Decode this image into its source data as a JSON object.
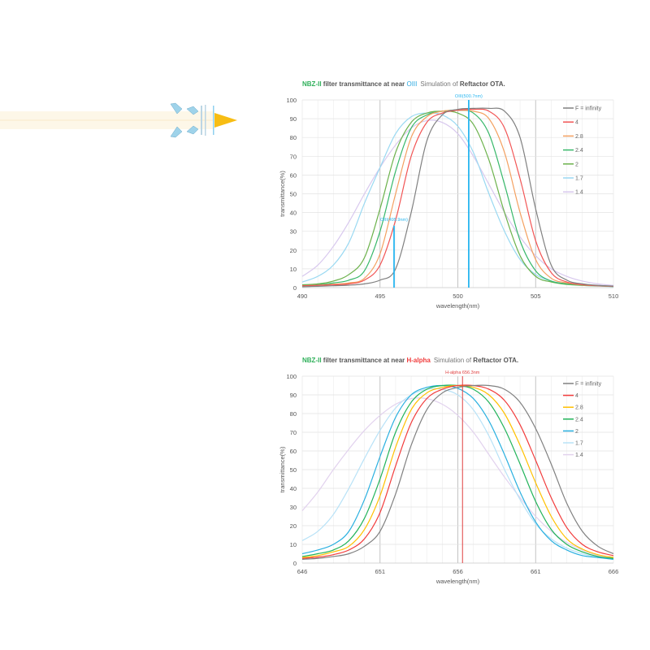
{
  "chart_data": [
    {
      "type": "line",
      "title_parts": {
        "brand": "NBZ-II",
        "text1": " filter transmittance  at near ",
        "line": "OIII",
        "sim": "Simulation of ",
        "ota": "Reftactor OTA."
      },
      "title_colors": {
        "brand": "#2fb05a",
        "line": "#29a8e0"
      },
      "xlabel": "wavelength(nm)",
      "ylabel": "transmittance(%)",
      "xlim": [
        490,
        510
      ],
      "ylim": [
        0,
        100
      ],
      "xticks": [
        490,
        495,
        500,
        505,
        510
      ],
      "yticks": [
        0,
        10,
        20,
        30,
        40,
        50,
        60,
        70,
        80,
        90,
        100
      ],
      "grid": true,
      "legend": "right",
      "markers": [
        {
          "x": 500.7,
          "label": "OIII(500.7nm)",
          "top": 100,
          "color": "#29b6f0"
        },
        {
          "x": 495.9,
          "label": "OIII(495.9nm)",
          "top": 33,
          "color": "#29b6f0"
        }
      ],
      "x": [
        490,
        491,
        492,
        493,
        494,
        495,
        496,
        497,
        498,
        499,
        500,
        501,
        502,
        503,
        504,
        505,
        506,
        507,
        508,
        509,
        510
      ],
      "series": [
        {
          "name": "F = infinity",
          "color": "#808080",
          "values": [
            0.5,
            0.7,
            1,
            1.3,
            2,
            4,
            10,
            40,
            78,
            92,
            95,
            95.5,
            95.5,
            94,
            80,
            42,
            12,
            4,
            2,
            1.2,
            0.8
          ]
        },
        {
          "name": "4",
          "color": "#f25555",
          "values": [
            1,
            1.2,
            1.5,
            2,
            4,
            12,
            36,
            70,
            88,
            93,
            94.5,
            95,
            94,
            85,
            58,
            25,
            8,
            3,
            1.6,
            1,
            0.7
          ]
        },
        {
          "name": "2.8",
          "color": "#f4a060",
          "values": [
            1,
            1.3,
            1.8,
            2.5,
            5,
            18,
            50,
            80,
            91,
            94,
            94.5,
            94,
            90,
            72,
            40,
            15,
            5,
            2.5,
            1.4,
            1,
            0.7
          ]
        },
        {
          "name": "2.4",
          "color": "#38b86a",
          "values": [
            1,
            1.5,
            2.5,
            4,
            9,
            30,
            62,
            85,
            92,
            94,
            94.5,
            93,
            82,
            55,
            25,
            9,
            3.5,
            2,
            1.3,
            1,
            0.7
          ]
        },
        {
          "name": "2",
          "color": "#6cb24c",
          "values": [
            1.5,
            2,
            3.5,
            7,
            16,
            42,
            72,
            88,
            93,
            94,
            93,
            87,
            68,
            40,
            17,
            6,
            3,
            1.7,
            1.2,
            0.9,
            0.6
          ]
        },
        {
          "name": "1.7",
          "color": "#9ad9f2",
          "values": [
            3,
            6,
            12,
            24,
            45,
            64,
            82,
            91,
            93,
            92,
            86,
            72,
            50,
            30,
            15,
            7,
            3.5,
            2,
            1.2,
            0.8,
            0.5
          ]
        },
        {
          "name": "1.4",
          "color": "#d8c8ee",
          "values": [
            6,
            12,
            22,
            35,
            50,
            64,
            76,
            85,
            89,
            88,
            82,
            70,
            55,
            40,
            27,
            17,
            10,
            6,
            3.5,
            2,
            1.2
          ]
        }
      ]
    },
    {
      "type": "line",
      "title_parts": {
        "brand": "NBZ-II",
        "text1": " filter transmittance  at near ",
        "line": "H-alpha",
        "sim": "Simulation of ",
        "ota": "Reftactor OTA."
      },
      "title_colors": {
        "brand": "#2fb05a",
        "line": "#f03c3c"
      },
      "xlabel": "wavelength(nm)",
      "ylabel": "transmittance(%)",
      "xlim": [
        646,
        666
      ],
      "ylim": [
        0,
        100
      ],
      "xticks": [
        646,
        651,
        656,
        661,
        666
      ],
      "yticks": [
        0,
        10,
        20,
        30,
        40,
        50,
        60,
        70,
        80,
        90,
        100
      ],
      "grid": true,
      "legend": "right",
      "markers": [
        {
          "x": 656.3,
          "label": "H-alpha 656.3nm",
          "top": 100,
          "color": "#e04040"
        }
      ],
      "x": [
        646,
        647,
        648,
        649,
        650,
        651,
        652,
        653,
        654,
        655,
        656,
        657,
        658,
        659,
        660,
        661,
        662,
        663,
        664,
        665,
        666
      ],
      "series": [
        {
          "name": "F = infinity",
          "color": "#808080",
          "values": [
            2,
            2.5,
            3.5,
            5,
            9,
            17,
            37,
            63,
            82,
            91,
            94,
            95,
            95,
            93,
            86,
            72,
            53,
            32,
            17,
            9,
            5
          ]
        },
        {
          "name": "4",
          "color": "#f23c3c",
          "values": [
            2.5,
            3.2,
            4.5,
            7,
            13,
            27,
            52,
            75,
            88,
            93,
            95,
            95,
            93,
            87,
            74,
            55,
            35,
            19,
            10,
            6,
            4
          ]
        },
        {
          "name": "2.8",
          "color": "#ffc000",
          "values": [
            3,
            4,
            6,
            9,
            18,
            36,
            62,
            82,
            91,
            94,
            95,
            94,
            90,
            80,
            63,
            43,
            25,
            13,
            7.5,
            4.5,
            3
          ]
        },
        {
          "name": "2.4",
          "color": "#22b35a",
          "values": [
            3.5,
            5,
            7,
            12,
            24,
            45,
            70,
            86,
            93,
            95,
            95,
            93,
            86,
            72,
            53,
            33,
            18,
            10,
            6,
            3.5,
            2.5
          ]
        },
        {
          "name": "2",
          "color": "#2ab0e0",
          "values": [
            5,
            7,
            10,
            17,
            34,
            57,
            78,
            90,
            94,
            95,
            93.5,
            88,
            76,
            58,
            38,
            22,
            12,
            7,
            4,
            3,
            2
          ]
        },
        {
          "name": "1.7",
          "color": "#b8e2f7",
          "values": [
            12,
            17,
            26,
            40,
            56,
            71,
            83,
            90,
            93,
            93,
            90,
            82,
            68,
            50,
            34,
            21,
            13,
            8,
            5,
            3,
            2
          ]
        },
        {
          "name": "1.4",
          "color": "#e2d2ee",
          "values": [
            28,
            38,
            50,
            61,
            71,
            79,
            85,
            88,
            88,
            85,
            79,
            70,
            58,
            46,
            35,
            25,
            17,
            11,
            7,
            4,
            2.5
          ]
        }
      ]
    }
  ]
}
